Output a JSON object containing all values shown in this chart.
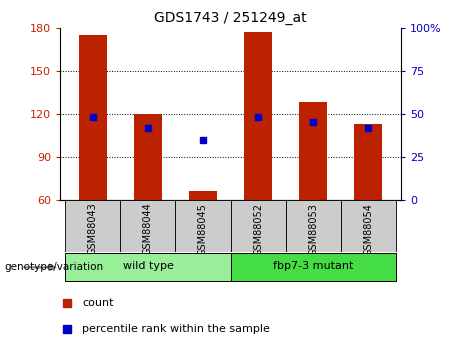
{
  "title": "GDS1743 / 251249_at",
  "samples": [
    "GSM88043",
    "GSM88044",
    "GSM88045",
    "GSM88052",
    "GSM88053",
    "GSM88054"
  ],
  "bar_heights": [
    175,
    120,
    66,
    177,
    128,
    113
  ],
  "percentile_values": [
    48,
    42,
    35,
    48,
    45,
    42
  ],
  "ylim_left": [
    60,
    180
  ],
  "ylim_right": [
    0,
    100
  ],
  "yticks_left": [
    60,
    90,
    120,
    150,
    180
  ],
  "yticks_right": [
    0,
    25,
    50,
    75,
    100
  ],
  "bar_color": "#bb2200",
  "dot_color": "#0000cc",
  "bar_width": 0.5,
  "groups": [
    {
      "label": "wild type",
      "indices": [
        0,
        1,
        2
      ],
      "color": "#99ee99"
    },
    {
      "label": "fbp7-3 mutant",
      "indices": [
        3,
        4,
        5
      ],
      "color": "#44dd44"
    }
  ],
  "group_label": "genotype/variation",
  "legend_count_label": "count",
  "legend_percentile_label": "percentile rank within the sample",
  "tick_color_left": "#cc2200",
  "tick_color_right": "#0000cc",
  "bg_color": "#ffffff",
  "sample_bg_color": "#cccccc"
}
